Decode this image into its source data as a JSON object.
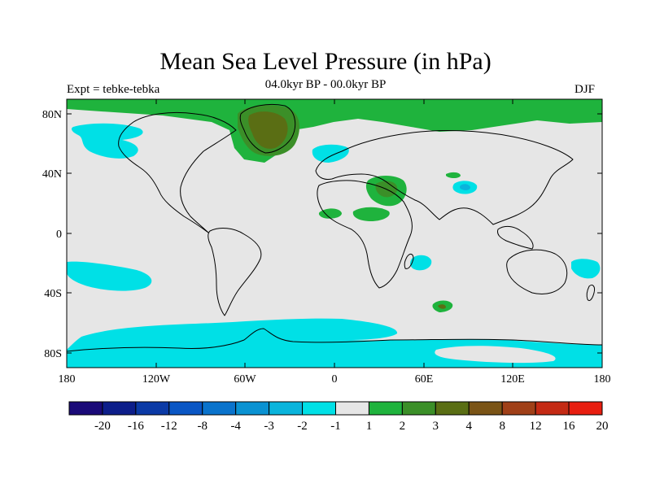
{
  "title": "Mean Sea Level Pressure (in hPa)",
  "experiment": "Expt = tebke-tebka",
  "period": "04.0kyr BP - 00.0kyr BP",
  "season": "DJF",
  "axes": {
    "lat_labels": [
      "80N",
      "40N",
      "0",
      "40S",
      "80S"
    ],
    "lon_labels": [
      "180",
      "120W",
      "60W",
      "0",
      "60E",
      "120E",
      "180"
    ]
  },
  "legend": {
    "colors": [
      "#1a0a78",
      "#0d1e8a",
      "#0b3aa6",
      "#0a56c4",
      "#0a73cc",
      "#0a92d2",
      "#0ab4dc",
      "#00e0e6",
      "#e6e6e6",
      "#1fb33d",
      "#3b8f28",
      "#5a6e14",
      "#7a5416",
      "#a04018",
      "#c42a14",
      "#e81e10"
    ],
    "labels": [
      "-20",
      "-16",
      "-12",
      "-8",
      "-4",
      "-3",
      "-2",
      "-1",
      "1",
      "2",
      "3",
      "4",
      "8",
      "12",
      "16",
      "20"
    ]
  },
  "colors": {
    "ocean_land_neutral": "#e6e6e6",
    "pos_low": "#1fb33d",
    "pos_mid": "#3b8f28",
    "pos_high": "#5a6e14",
    "neg_low": "#00e0e6",
    "neg_mid": "#0ab4dc"
  }
}
